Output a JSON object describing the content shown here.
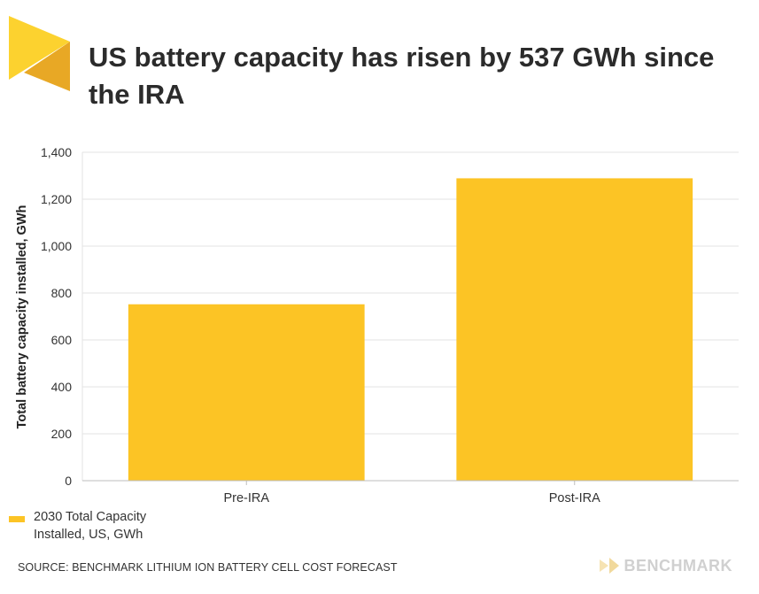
{
  "header": {
    "title": "US battery capacity has risen by 537 GWh since the IRA"
  },
  "chart_data": {
    "type": "bar",
    "categories": [
      "Pre-IRA",
      "Post-IRA"
    ],
    "series": [
      {
        "name": "2030 Total Capacity Installed, US, GWh",
        "values": [
          752,
          1289
        ]
      }
    ],
    "ylabel": "Total battery capacity installed, GWh",
    "ylim": [
      0,
      1400
    ],
    "yticks": [
      0,
      200,
      400,
      600,
      800,
      1000,
      1200,
      1400
    ],
    "ytick_labels": [
      "0",
      "200",
      "400",
      "600",
      "800",
      "1,000",
      "1,200",
      "1,400"
    ],
    "grid": true,
    "legend_position": "bottom-left",
    "bar_color": "#fcc425"
  },
  "legend": {
    "label": "2030 Total Capacity Installed, US, GWh",
    "color": "#fcc425"
  },
  "footer": {
    "source": "SOURCE: BENCHMARK LITHIUM ION BATTERY CELL COST FORECAST",
    "brand": "BENCHMARK"
  },
  "colors": {
    "logo_light": "#fcd22f",
    "logo_dark": "#e8a825",
    "grid": "#e3e3e3",
    "axis": "#bdbdbd"
  }
}
